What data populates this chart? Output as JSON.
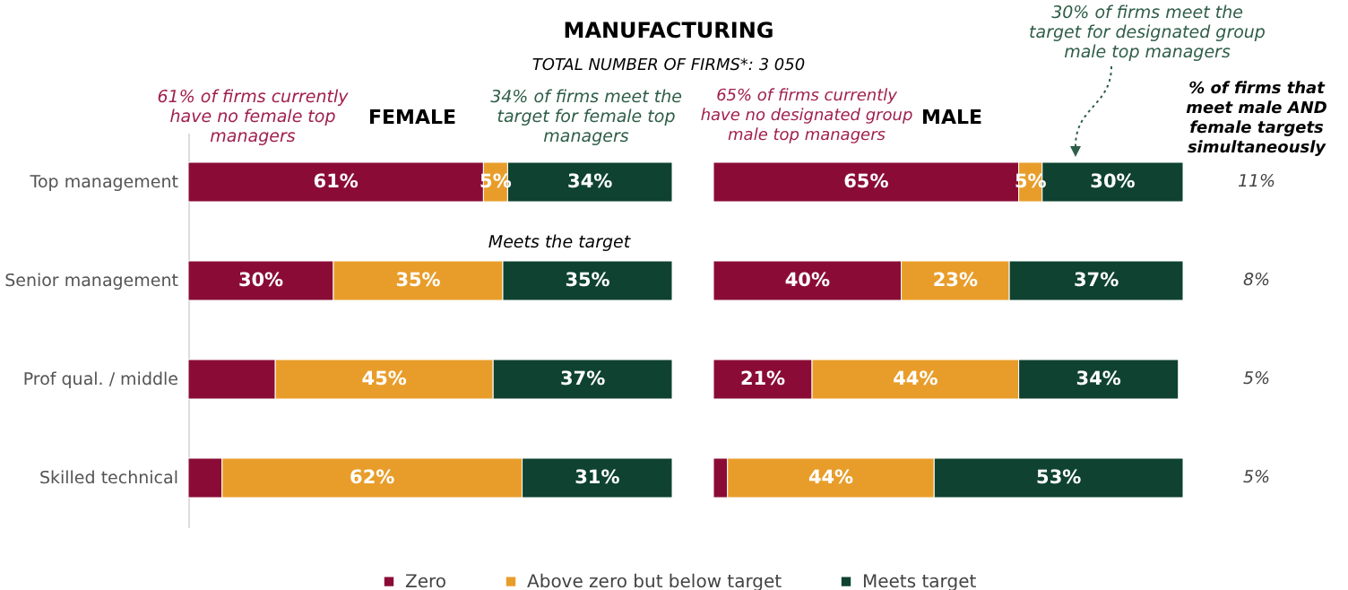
{
  "chart_data": [
    {
      "type": "bar",
      "title": "FEMALE",
      "orientation": "horizontal",
      "stacked": true,
      "tick_labels": "y",
      "legend": "bottom",
      "categories": [
        "Top management",
        "Senior management",
        "Prof qual. / middle",
        "Skilled technical"
      ],
      "annotations": [
        "MANUFACTURING",
        "TOTAL NUMBER OF FIRMS*: 3 050",
        "61% of firms currently have no female top managers",
        "34% of firms meet the target for female top managers",
        "Meets the target"
      ],
      "series": [
        {
          "name": "Zero",
          "color": "#8a0c36",
          "values": [
            61,
            30,
            18,
            7
          ],
          "value_labels": [
            "61%",
            "30%",
            null,
            null
          ]
        },
        {
          "name": "Above zero but below target",
          "color": "#e89d2a",
          "values": [
            5,
            35,
            45,
            62
          ],
          "value_labels": [
            "5%",
            "35%",
            "45%",
            "62%"
          ]
        },
        {
          "name": "Meets target",
          "color": "#0f4230",
          "values": [
            34,
            35,
            37,
            31
          ],
          "value_labels": [
            "34%",
            "35%",
            "37%",
            "31%"
          ]
        }
      ]
    },
    {
      "type": "bar",
      "title": "MALE",
      "orientation": "horizontal",
      "stacked": true,
      "tick_labels": false,
      "categories": [
        null,
        null,
        null,
        null
      ],
      "annotations": [
        "65% of firms currently have no designated group male top managers",
        "30% of firms meet the target for designated group male top managers",
        "% of firms that meet male AND female targets simultaneously",
        "11%",
        "8%",
        "5%",
        "5%"
      ],
      "series": [
        {
          "color": "#8a0c36",
          "values": [
            65,
            40,
            21,
            3
          ],
          "value_labels": [
            "65%",
            "40%",
            "21%",
            null
          ]
        },
        {
          "color": "#e89d2a",
          "values": [
            5,
            23,
            44,
            44
          ],
          "value_labels": [
            "5%",
            "23%",
            "44%",
            "44%"
          ]
        },
        {
          "color": "#0f4230",
          "values": [
            30,
            37,
            34,
            53
          ],
          "value_labels": [
            "30%",
            "37%",
            "34%",
            "53%"
          ]
        }
      ]
    }
  ]
}
